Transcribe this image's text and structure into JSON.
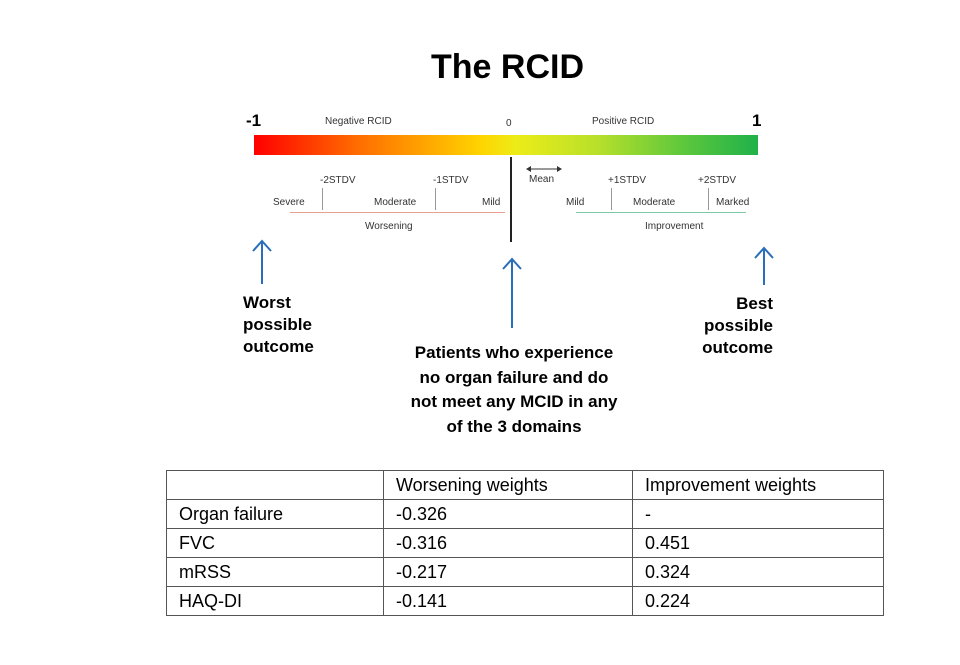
{
  "title": "The RCID",
  "scale": {
    "left_end": "-1",
    "right_end": "1",
    "negative_label": "Negative RCID",
    "zero_label": "0",
    "positive_label": "Positive RCID",
    "mean_label": "Mean",
    "ticks": [
      "-2STDV",
      "-1STDV",
      "+1STDV",
      "+2STDV"
    ],
    "categories_left": [
      "Severe",
      "Moderate",
      "Mild"
    ],
    "categories_right": [
      "Mild",
      "Moderate",
      "Marked"
    ],
    "worsening_label": "Worsening",
    "improvement_label": "Improvement"
  },
  "callouts": {
    "left": [
      "Worst",
      "possible",
      "outcome"
    ],
    "right": [
      "Best",
      "possible",
      "outcome"
    ],
    "center": [
      "Patients who experience",
      "no organ failure and do",
      "not meet any MCID in any",
      "of the 3 domains"
    ]
  },
  "table": {
    "headers": [
      "",
      "Worsening weights",
      "Improvement weights"
    ],
    "rows": [
      [
        "Organ failure",
        "-0.326",
        "-"
      ],
      [
        "FVC",
        "-0.316",
        "0.451"
      ],
      [
        "mRSS",
        "-0.217",
        "0.324"
      ],
      [
        "HAQ-DI",
        "-0.141",
        "0.224"
      ]
    ]
  },
  "colors": {
    "arrow": "#2a6ebb",
    "worsening_line": "#e8a090",
    "improvement_line": "#7fc8a6"
  }
}
